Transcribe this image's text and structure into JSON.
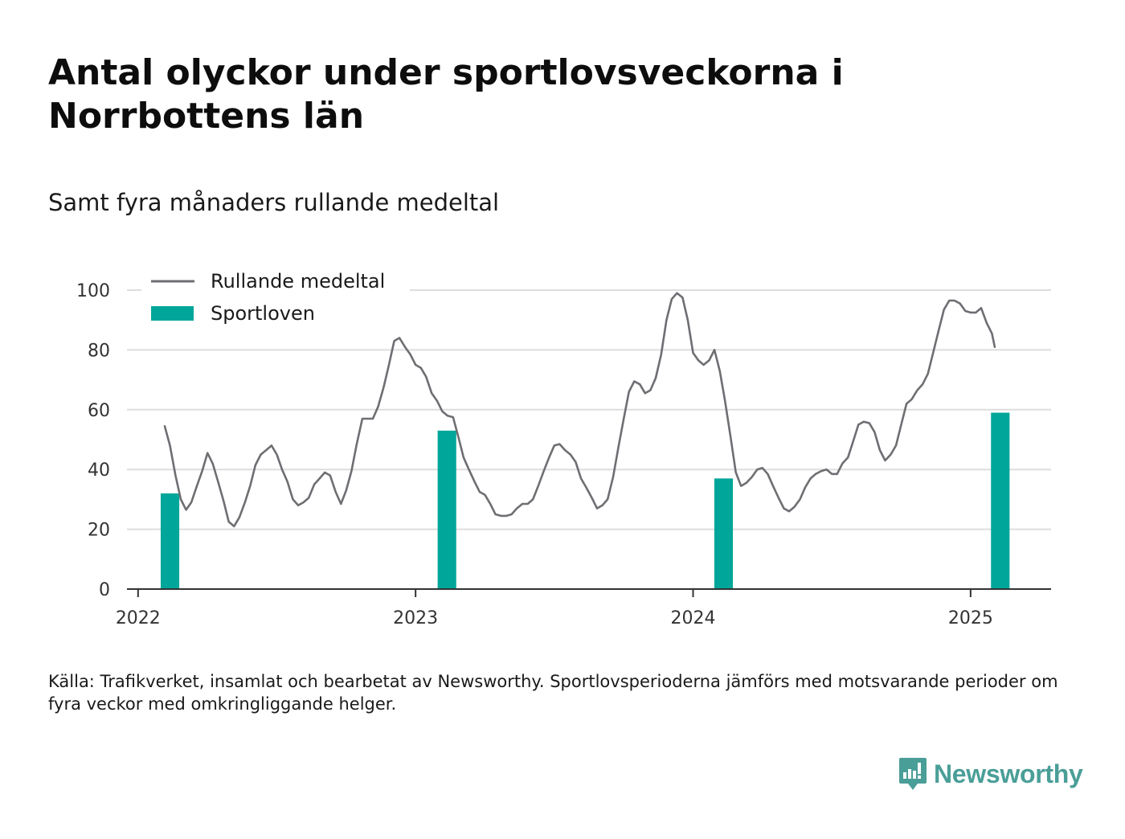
{
  "title": "Antal olyckor under sportlovsveckorna i Norrbottens län",
  "subtitle": "Samt fyra månaders rullande medeltal",
  "source": "Källa: Trafikverket, insamlat och bearbetat av Newsworthy. Sportlovsperioderna jämförs med motsvarande perioder om fyra veckor med omkringliggande helger.",
  "logo": {
    "text": "Newsworthy",
    "icon": "newsworthy-logo-icon",
    "color": "#4a9e98"
  },
  "chart_data": {
    "type": "bar+line",
    "ylim": [
      0,
      100
    ],
    "yticks": [
      0,
      20,
      40,
      60,
      80,
      100
    ],
    "xlim": [
      2021.96,
      2025.29
    ],
    "xticks": [
      {
        "value": 2022,
        "label": "2022"
      },
      {
        "value": 2023,
        "label": "2023"
      },
      {
        "value": 2024,
        "label": "2024"
      },
      {
        "value": 2025,
        "label": "2025"
      }
    ],
    "grid": true,
    "legend_placement": "top-left",
    "bars": {
      "name": "Sportloven",
      "color": "#00a69a",
      "width_years": 0.067,
      "points": [
        {
          "x": 2022.115,
          "y": 32
        },
        {
          "x": 2023.113,
          "y": 53
        },
        {
          "x": 2024.11,
          "y": 37
        },
        {
          "x": 2025.107,
          "y": 59
        }
      ]
    },
    "line": {
      "name": "Rullande medeltal",
      "color": "#6e6e73",
      "points": [
        [
          2022.096,
          54.5
        ],
        [
          2022.115,
          48
        ],
        [
          2022.135,
          38
        ],
        [
          2022.154,
          30
        ],
        [
          2022.173,
          26.5
        ],
        [
          2022.192,
          29
        ],
        [
          2022.212,
          34.5
        ],
        [
          2022.231,
          39.5
        ],
        [
          2022.25,
          45.5
        ],
        [
          2022.269,
          42
        ],
        [
          2022.288,
          36
        ],
        [
          2022.308,
          29.5
        ],
        [
          2022.327,
          22.5
        ],
        [
          2022.346,
          21
        ],
        [
          2022.365,
          24
        ],
        [
          2022.385,
          29
        ],
        [
          2022.404,
          34.5
        ],
        [
          2022.423,
          41.5
        ],
        [
          2022.442,
          45
        ],
        [
          2022.462,
          46.5
        ],
        [
          2022.481,
          48
        ],
        [
          2022.5,
          45
        ],
        [
          2022.519,
          40
        ],
        [
          2022.538,
          36
        ],
        [
          2022.558,
          30
        ],
        [
          2022.577,
          28
        ],
        [
          2022.596,
          29
        ],
        [
          2022.615,
          30.5
        ],
        [
          2022.635,
          35
        ],
        [
          2022.654,
          37
        ],
        [
          2022.673,
          39
        ],
        [
          2022.692,
          38
        ],
        [
          2022.712,
          32.5
        ],
        [
          2022.731,
          28.5
        ],
        [
          2022.75,
          33
        ],
        [
          2022.769,
          39.5
        ],
        [
          2022.788,
          48.5
        ],
        [
          2022.808,
          57
        ],
        [
          2022.827,
          57
        ],
        [
          2022.846,
          57
        ],
        [
          2022.865,
          61
        ],
        [
          2022.885,
          67.5
        ],
        [
          2022.904,
          75
        ],
        [
          2022.923,
          83
        ],
        [
          2022.942,
          84
        ],
        [
          2022.962,
          81
        ],
        [
          2022.981,
          78.5
        ],
        [
          2023.0,
          75
        ],
        [
          2023.019,
          74
        ],
        [
          2023.038,
          71
        ],
        [
          2023.058,
          65.5
        ],
        [
          2023.077,
          63
        ],
        [
          2023.096,
          59.5
        ],
        [
          2023.115,
          58
        ],
        [
          2023.135,
          57.5
        ],
        [
          2023.154,
          51
        ],
        [
          2023.173,
          44
        ],
        [
          2023.192,
          40
        ],
        [
          2023.212,
          36
        ],
        [
          2023.231,
          32.5
        ],
        [
          2023.25,
          31.5
        ],
        [
          2023.269,
          28.5
        ],
        [
          2023.288,
          25
        ],
        [
          2023.308,
          24.5
        ],
        [
          2023.327,
          24.5
        ],
        [
          2023.346,
          25
        ],
        [
          2023.365,
          27
        ],
        [
          2023.385,
          28.5
        ],
        [
          2023.404,
          28.5
        ],
        [
          2023.423,
          30
        ],
        [
          2023.442,
          34.5
        ],
        [
          2023.462,
          39.5
        ],
        [
          2023.481,
          44
        ],
        [
          2023.5,
          48
        ],
        [
          2023.519,
          48.5
        ],
        [
          2023.538,
          46.5
        ],
        [
          2023.558,
          45
        ],
        [
          2023.577,
          42.5
        ],
        [
          2023.596,
          37
        ],
        [
          2023.615,
          34
        ],
        [
          2023.635,
          30.5
        ],
        [
          2023.654,
          27
        ],
        [
          2023.673,
          28
        ],
        [
          2023.692,
          30
        ],
        [
          2023.712,
          37.5
        ],
        [
          2023.731,
          47.5
        ],
        [
          2023.75,
          57
        ],
        [
          2023.769,
          66
        ],
        [
          2023.788,
          69.5
        ],
        [
          2023.808,
          68.5
        ],
        [
          2023.827,
          65.5
        ],
        [
          2023.846,
          66.5
        ],
        [
          2023.865,
          70.5
        ],
        [
          2023.885,
          78.5
        ],
        [
          2023.904,
          90
        ],
        [
          2023.923,
          97
        ],
        [
          2023.942,
          99
        ],
        [
          2023.962,
          97.5
        ],
        [
          2023.981,
          90
        ],
        [
          2024.0,
          79
        ],
        [
          2024.019,
          76.5
        ],
        [
          2024.038,
          75
        ],
        [
          2024.058,
          76.5
        ],
        [
          2024.077,
          80
        ],
        [
          2024.096,
          73
        ],
        [
          2024.115,
          63
        ],
        [
          2024.135,
          51
        ],
        [
          2024.154,
          39
        ],
        [
          2024.173,
          34.5
        ],
        [
          2024.192,
          35.5
        ],
        [
          2024.212,
          37.5
        ],
        [
          2024.231,
          40
        ],
        [
          2024.25,
          40.5
        ],
        [
          2024.269,
          38.5
        ],
        [
          2024.288,
          34.5
        ],
        [
          2024.308,
          30.5
        ],
        [
          2024.327,
          27
        ],
        [
          2024.346,
          26
        ],
        [
          2024.365,
          27.5
        ],
        [
          2024.385,
          30
        ],
        [
          2024.404,
          34
        ],
        [
          2024.423,
          37
        ],
        [
          2024.442,
          38.5
        ],
        [
          2024.462,
          39.5
        ],
        [
          2024.481,
          40
        ],
        [
          2024.5,
          38.5
        ],
        [
          2024.519,
          38.5
        ],
        [
          2024.538,
          42
        ],
        [
          2024.558,
          44
        ],
        [
          2024.577,
          49.5
        ],
        [
          2024.596,
          55
        ],
        [
          2024.615,
          56
        ],
        [
          2024.635,
          55.5
        ],
        [
          2024.654,
          52.5
        ],
        [
          2024.673,
          46.5
        ],
        [
          2024.692,
          43
        ],
        [
          2024.712,
          45
        ],
        [
          2024.731,
          48
        ],
        [
          2024.75,
          55
        ],
        [
          2024.769,
          62
        ],
        [
          2024.788,
          63.5
        ],
        [
          2024.808,
          66.5
        ],
        [
          2024.827,
          68.5
        ],
        [
          2024.846,
          72
        ],
        [
          2024.865,
          79
        ],
        [
          2024.885,
          86.5
        ],
        [
          2024.904,
          93.5
        ],
        [
          2024.923,
          96.5
        ],
        [
          2024.942,
          96.5
        ],
        [
          2024.962,
          95.5
        ],
        [
          2024.981,
          93
        ],
        [
          2025.0,
          92.5
        ],
        [
          2025.019,
          92.5
        ],
        [
          2025.038,
          94
        ],
        [
          2025.058,
          89
        ],
        [
          2025.077,
          85.5
        ],
        [
          2025.087,
          81
        ]
      ]
    }
  }
}
